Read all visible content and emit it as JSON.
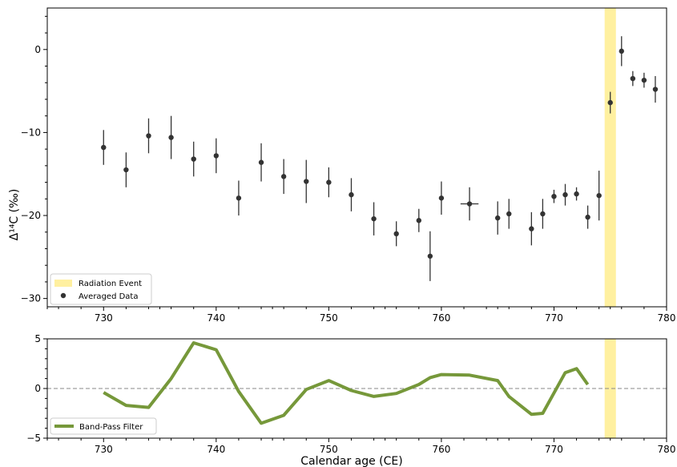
{
  "colors": {
    "event_band": "#fff0a0",
    "data_points": "#333333",
    "filter_line": "#76983a",
    "zero_line": "#888888"
  },
  "chart_data": [
    {
      "type": "scatter",
      "title": "",
      "xlabel": "",
      "ylabel": "Δ¹⁴C (‰)",
      "xlim": [
        725,
        780
      ],
      "ylim": [
        -31,
        5
      ],
      "xticks": [
        "730",
        "740",
        "750",
        "760",
        "770",
        "780"
      ],
      "yticks": [
        "0",
        "−10",
        "−20",
        "−30"
      ],
      "legend_position": "bottom-left",
      "legend": {
        "band_label": "Radiation Event",
        "points_label": "Averaged Data"
      },
      "event_band": {
        "x_start": 774.5,
        "x_end": 775.5
      },
      "series": [
        {
          "name": "Averaged Data",
          "points": [
            {
              "x": 730,
              "y": -11.8,
              "err": 2.1
            },
            {
              "x": 732,
              "y": -14.5,
              "err": 2.1
            },
            {
              "x": 734,
              "y": -10.4,
              "err": 2.1
            },
            {
              "x": 736,
              "y": -10.6,
              "err": 2.6
            },
            {
              "x": 738,
              "y": -13.2,
              "err": 2.1
            },
            {
              "x": 740,
              "y": -12.8,
              "err": 2.1
            },
            {
              "x": 742,
              "y": -17.9,
              "err": 2.1
            },
            {
              "x": 744,
              "y": -13.6,
              "err": 2.3
            },
            {
              "x": 746,
              "y": -15.3,
              "err": 2.1
            },
            {
              "x": 748,
              "y": -15.9,
              "err": 2.6
            },
            {
              "x": 750,
              "y": -16.0,
              "err": 1.8
            },
            {
              "x": 752,
              "y": -17.5,
              "err": 2.0
            },
            {
              "x": 754,
              "y": -20.4,
              "err": 2.0
            },
            {
              "x": 756,
              "y": -22.2,
              "err": 1.5
            },
            {
              "x": 758,
              "y": -20.6,
              "err": 1.4
            },
            {
              "x": 759,
              "y": -24.9,
              "err": 3.0
            },
            {
              "x": 760,
              "y": -17.9,
              "err": 2.0
            },
            {
              "x": 762.5,
              "y": -18.6,
              "err": 2.0,
              "xerr": 0.8
            },
            {
              "x": 765,
              "y": -20.3,
              "err": 2.0
            },
            {
              "x": 766,
              "y": -19.8,
              "err": 1.8
            },
            {
              "x": 768,
              "y": -21.6,
              "err": 2.0
            },
            {
              "x": 769,
              "y": -19.8,
              "err": 1.8
            },
            {
              "x": 770,
              "y": -17.7,
              "err": 0.8
            },
            {
              "x": 771,
              "y": -17.5,
              "err": 1.3
            },
            {
              "x": 772,
              "y": -17.4,
              "err": 0.8
            },
            {
              "x": 773,
              "y": -20.2,
              "err": 1.4
            },
            {
              "x": 774,
              "y": -17.6,
              "err": 3.0
            },
            {
              "x": 775,
              "y": -6.4,
              "err": 1.3
            },
            {
              "x": 776,
              "y": -0.2,
              "err": 1.8
            },
            {
              "x": 777,
              "y": -3.5,
              "err": 0.9
            },
            {
              "x": 778,
              "y": -3.7,
              "err": 0.9
            },
            {
              "x": 779,
              "y": -4.8,
              "err": 1.6
            }
          ]
        }
      ]
    },
    {
      "type": "line",
      "title": "",
      "xlabel": "Calendar age (CE)",
      "ylabel": "",
      "xlim": [
        725,
        780
      ],
      "ylim": [
        -5,
        5
      ],
      "xticks": [
        "730",
        "740",
        "750",
        "760",
        "770",
        "780"
      ],
      "yticks": [
        "5",
        "0",
        "−5"
      ],
      "legend_position": "bottom-left",
      "legend": {
        "line_label": "Band-Pass Filter"
      },
      "event_band": {
        "x_start": 774.5,
        "x_end": 775.5
      },
      "series": [
        {
          "name": "Band-Pass Filter",
          "x": [
            730,
            732,
            734,
            736,
            738,
            740,
            742,
            744,
            746,
            748,
            750,
            752,
            754,
            756,
            758,
            759,
            760,
            762.5,
            765,
            766,
            768,
            769,
            771,
            772,
            773
          ],
          "y": [
            -0.4,
            -1.7,
            -1.9,
            1.0,
            4.6,
            3.9,
            -0.3,
            -3.5,
            -2.7,
            -0.1,
            0.8,
            -0.2,
            -0.8,
            -0.5,
            0.4,
            1.1,
            1.4,
            1.35,
            0.8,
            -0.8,
            -2.6,
            -2.5,
            1.6,
            2.0,
            0.4
          ]
        }
      ]
    }
  ]
}
